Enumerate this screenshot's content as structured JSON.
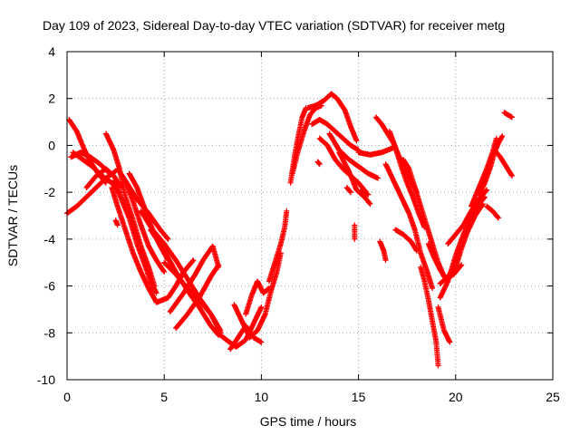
{
  "chart_data": {
    "type": "scatter",
    "title": "Day 109 of 2023, Sidereal Day-to-day VTEC variation (SDTVAR) for receiver metg",
    "xlabel": "GPS time / hours",
    "ylabel": "SDTVAR / TECUs",
    "xlim": [
      0,
      25
    ],
    "ylim": [
      -10,
      4
    ],
    "x_ticks": [
      "0",
      "5",
      "10",
      "15",
      "20",
      "25"
    ],
    "y_ticks": [
      "-10",
      "-8",
      "-6",
      "-4",
      "-2",
      "0",
      "2",
      "4"
    ],
    "grid": true,
    "marker": "+",
    "color": "#ff0000",
    "tracks": [
      [
        [
          0.0,
          -2.9
        ],
        [
          0.5,
          -2.6
        ],
        [
          1.0,
          -2.2
        ],
        [
          1.5,
          -1.8
        ],
        [
          2.0,
          -1.4
        ],
        [
          2.5,
          -1.1
        ]
      ],
      [
        [
          0.3,
          -0.3
        ],
        [
          0.8,
          -0.6
        ],
        [
          1.3,
          -0.9
        ],
        [
          1.8,
          -1.3
        ],
        [
          2.3,
          -1.6
        ],
        [
          2.7,
          -2.0
        ]
      ],
      [
        [
          0.1,
          1.1
        ],
        [
          0.5,
          0.6
        ],
        [
          0.9,
          -0.2
        ],
        [
          1.2,
          -0.7
        ],
        [
          1.6,
          -1.2
        ],
        [
          2.0,
          -1.6
        ]
      ],
      [
        [
          0.2,
          -0.5
        ],
        [
          0.7,
          -0.3
        ],
        [
          1.2,
          -0.5
        ],
        [
          1.7,
          -0.8
        ],
        [
          2.2,
          -1.2
        ]
      ],
      [
        [
          1.0,
          -1.8
        ],
        [
          1.5,
          -1.3
        ],
        [
          2.0,
          -1.0
        ],
        [
          2.4,
          -1.3
        ],
        [
          2.8,
          -1.8
        ]
      ],
      [
        [
          2.0,
          0.5
        ],
        [
          2.4,
          -0.2
        ],
        [
          2.7,
          -1.0
        ],
        [
          3.0,
          -2.2
        ],
        [
          3.4,
          -3.2
        ],
        [
          3.8,
          -4.3
        ],
        [
          4.2,
          -5.2
        ],
        [
          4.5,
          -6.0
        ]
      ],
      [
        [
          2.4,
          -1.5
        ],
        [
          2.8,
          -2.3
        ],
        [
          3.2,
          -3.1
        ],
        [
          3.6,
          -4.2
        ],
        [
          4.0,
          -5.1
        ],
        [
          4.3,
          -5.8
        ],
        [
          4.6,
          -6.3
        ]
      ],
      [
        [
          2.3,
          -1.8
        ],
        [
          2.6,
          -2.6
        ],
        [
          3.0,
          -3.6
        ],
        [
          3.4,
          -4.6
        ],
        [
          3.8,
          -5.4
        ],
        [
          4.2,
          -6.1
        ],
        [
          4.6,
          -6.7
        ]
      ],
      [
        [
          2.6,
          -1.0
        ],
        [
          3.0,
          -1.5
        ],
        [
          3.4,
          -2.4
        ],
        [
          3.8,
          -3.4
        ],
        [
          4.2,
          -4.3
        ],
        [
          4.6,
          -4.9
        ],
        [
          5.0,
          -5.4
        ]
      ],
      [
        [
          3.2,
          -1.2
        ],
        [
          3.6,
          -1.8
        ],
        [
          4.0,
          -2.7
        ],
        [
          4.4,
          -3.6
        ],
        [
          4.8,
          -4.3
        ],
        [
          5.2,
          -4.9
        ]
      ],
      [
        [
          3.0,
          -1.5
        ],
        [
          3.6,
          -2.3
        ],
        [
          4.2,
          -2.9
        ],
        [
          4.8,
          -3.6
        ],
        [
          5.2,
          -4.0
        ]
      ],
      [
        [
          3.8,
          -2.8
        ],
        [
          4.4,
          -3.6
        ],
        [
          5.0,
          -4.2
        ],
        [
          5.6,
          -4.9
        ],
        [
          6.2,
          -5.7
        ],
        [
          6.8,
          -6.5
        ],
        [
          7.4,
          -7.2
        ],
        [
          7.9,
          -8.0
        ]
      ],
      [
        [
          4.3,
          -3.6
        ],
        [
          5.0,
          -4.5
        ],
        [
          5.6,
          -5.4
        ],
        [
          6.2,
          -6.2
        ],
        [
          6.8,
          -6.9
        ],
        [
          7.4,
          -7.7
        ],
        [
          7.8,
          -8.1
        ]
      ],
      [
        [
          5.0,
          -5.0
        ],
        [
          5.6,
          -5.5
        ],
        [
          6.2,
          -6.1
        ],
        [
          6.8,
          -6.6
        ],
        [
          7.4,
          -7.2
        ],
        [
          7.9,
          -7.9
        ]
      ],
      [
        [
          4.6,
          -6.7
        ],
        [
          5.2,
          -6.5
        ],
        [
          5.6,
          -6.0
        ],
        [
          6.0,
          -5.4
        ],
        [
          6.5,
          -4.9
        ]
      ],
      [
        [
          5.3,
          -7.1
        ],
        [
          6.0,
          -6.3
        ],
        [
          6.6,
          -5.5
        ],
        [
          7.0,
          -4.9
        ],
        [
          7.5,
          -4.3
        ],
        [
          7.8,
          -5.2
        ]
      ],
      [
        [
          5.6,
          -7.8
        ],
        [
          6.2,
          -7.2
        ],
        [
          6.8,
          -6.5
        ],
        [
          7.4,
          -5.6
        ],
        [
          7.8,
          -5.1
        ]
      ],
      [
        [
          7.6,
          -7.9
        ],
        [
          8.2,
          -8.3
        ],
        [
          8.7,
          -8.6
        ],
        [
          9.2,
          -8.3
        ],
        [
          9.6,
          -7.6
        ],
        [
          10.0,
          -6.9
        ]
      ],
      [
        [
          8.6,
          -6.8
        ],
        [
          9.0,
          -7.5
        ],
        [
          9.4,
          -8.2
        ],
        [
          9.8,
          -7.9
        ],
        [
          10.2,
          -7.2
        ],
        [
          10.5,
          -6.2
        ],
        [
          10.8,
          -5.4
        ],
        [
          11.0,
          -4.6
        ]
      ],
      [
        [
          9.2,
          -7.2
        ],
        [
          9.5,
          -6.4
        ],
        [
          9.8,
          -5.8
        ],
        [
          10.1,
          -6.3
        ],
        [
          10.4,
          -6.1
        ]
      ],
      [
        [
          8.4,
          -8.7
        ],
        [
          8.8,
          -8.2
        ],
        [
          9.2,
          -7.7
        ],
        [
          9.6,
          -8.2
        ],
        [
          10.0,
          -8.4
        ]
      ],
      [
        [
          10.4,
          -5.8
        ],
        [
          10.7,
          -5.0
        ],
        [
          11.0,
          -4.2
        ],
        [
          11.2,
          -3.5
        ],
        [
          11.3,
          -2.8
        ]
      ],
      [
        [
          11.5,
          -1.6
        ],
        [
          11.7,
          -0.5
        ],
        [
          11.9,
          0.4
        ],
        [
          12.1,
          1.2
        ],
        [
          12.3,
          1.6
        ]
      ],
      [
        [
          11.6,
          -1.2
        ],
        [
          11.9,
          -0.2
        ],
        [
          12.2,
          0.6
        ],
        [
          12.5,
          1.3
        ],
        [
          12.8,
          1.6
        ],
        [
          13.1,
          1.7
        ]
      ],
      [
        [
          12.4,
          1.6
        ],
        [
          12.8,
          1.7
        ],
        [
          13.2,
          1.9
        ],
        [
          13.6,
          2.2
        ],
        [
          13.9,
          2.0
        ],
        [
          14.3,
          1.5
        ],
        [
          14.6,
          0.8
        ],
        [
          14.9,
          0.2
        ]
      ],
      [
        [
          12.6,
          0.9
        ],
        [
          13.0,
          1.1
        ],
        [
          13.4,
          0.9
        ],
        [
          13.8,
          0.6
        ],
        [
          14.2,
          0.3
        ],
        [
          14.6,
          0.0
        ],
        [
          15.0,
          -0.2
        ]
      ],
      [
        [
          13.0,
          0.3
        ],
        [
          13.4,
          0.0
        ],
        [
          13.8,
          -0.6
        ],
        [
          14.2,
          -1.0
        ],
        [
          14.6,
          -1.3
        ],
        [
          15.0,
          -1.6
        ],
        [
          15.4,
          -2.0
        ]
      ],
      [
        [
          13.5,
          0.5
        ],
        [
          14.0,
          -0.2
        ],
        [
          14.5,
          -0.6
        ],
        [
          15.0,
          -0.9
        ],
        [
          15.5,
          -1.2
        ],
        [
          16.0,
          -1.4
        ]
      ],
      [
        [
          14.0,
          -0.3
        ],
        [
          14.5,
          -1.1
        ],
        [
          14.9,
          -1.9
        ],
        [
          15.3,
          -2.2
        ],
        [
          15.6,
          -2.5
        ]
      ],
      [
        [
          15.0,
          -0.3
        ],
        [
          15.6,
          -0.4
        ],
        [
          16.2,
          -0.3
        ],
        [
          16.8,
          -0.1
        ]
      ],
      [
        [
          15.9,
          1.2
        ],
        [
          16.2,
          0.9
        ],
        [
          16.5,
          0.5
        ],
        [
          16.8,
          0.1
        ],
        [
          17.1,
          -0.5
        ],
        [
          17.4,
          -1.0
        ],
        [
          17.7,
          -1.5
        ],
        [
          18.0,
          -2.0
        ]
      ],
      [
        [
          16.6,
          0.6
        ],
        [
          16.9,
          -0.1
        ],
        [
          17.2,
          -0.9
        ],
        [
          17.5,
          -1.6
        ],
        [
          17.8,
          -2.2
        ],
        [
          18.1,
          -2.9
        ],
        [
          18.4,
          -3.5
        ]
      ],
      [
        [
          17.3,
          -0.6
        ],
        [
          17.6,
          -1.0
        ],
        [
          17.9,
          -1.8
        ],
        [
          18.2,
          -2.6
        ],
        [
          18.5,
          -3.4
        ],
        [
          18.8,
          -4.2
        ],
        [
          19.1,
          -5.0
        ],
        [
          19.4,
          -5.6
        ]
      ],
      [
        [
          16.4,
          -0.8
        ],
        [
          16.8,
          -1.5
        ],
        [
          17.2,
          -2.2
        ],
        [
          17.6,
          -2.9
        ],
        [
          17.9,
          -3.6
        ],
        [
          18.2,
          -4.6
        ],
        [
          18.5,
          -5.3
        ],
        [
          18.8,
          -6.1
        ]
      ],
      [
        [
          16.9,
          -3.6
        ],
        [
          17.3,
          -3.8
        ],
        [
          17.7,
          -4.1
        ],
        [
          18.0,
          -4.5
        ]
      ],
      [
        [
          18.2,
          -5.2
        ],
        [
          18.4,
          -5.8
        ],
        [
          18.6,
          -6.6
        ],
        [
          18.8,
          -7.5
        ],
        [
          19.0,
          -8.4
        ],
        [
          19.1,
          -9.4
        ]
      ],
      [
        [
          18.6,
          -4.2
        ],
        [
          18.9,
          -4.8
        ],
        [
          19.2,
          -5.3
        ],
        [
          19.5,
          -5.7
        ],
        [
          19.9,
          -5.5
        ],
        [
          20.3,
          -5.1
        ]
      ],
      [
        [
          19.2,
          -5.9
        ],
        [
          19.6,
          -5.6
        ],
        [
          20.0,
          -5.2
        ],
        [
          20.3,
          -4.4
        ],
        [
          20.6,
          -3.7
        ],
        [
          21.0,
          -3.0
        ],
        [
          21.4,
          -2.5
        ]
      ],
      [
        [
          19.2,
          -6.5
        ],
        [
          19.6,
          -5.8
        ],
        [
          20.0,
          -4.7
        ],
        [
          20.4,
          -3.8
        ],
        [
          20.8,
          -3.1
        ],
        [
          21.2,
          -2.5
        ],
        [
          21.5,
          -2.2
        ]
      ],
      [
        [
          19.6,
          -4.2
        ],
        [
          20.0,
          -3.8
        ],
        [
          20.4,
          -3.4
        ],
        [
          20.8,
          -2.8
        ],
        [
          21.2,
          -2.3
        ],
        [
          21.6,
          -1.9
        ]
      ],
      [
        [
          19.1,
          -6.9
        ],
        [
          19.4,
          -7.9
        ],
        [
          19.7,
          -8.4
        ]
      ],
      [
        [
          20.8,
          -2.6
        ],
        [
          21.2,
          -1.8
        ],
        [
          21.6,
          -1.0
        ],
        [
          21.9,
          -0.3
        ],
        [
          22.1,
          0.3
        ]
      ],
      [
        [
          21.2,
          -2.1
        ],
        [
          21.5,
          -1.6
        ],
        [
          21.8,
          -0.9
        ],
        [
          22.0,
          -0.3
        ],
        [
          22.2,
          0.1
        ],
        [
          22.4,
          0.4
        ]
      ],
      [
        [
          22.0,
          -0.2
        ],
        [
          22.3,
          -0.5
        ],
        [
          22.6,
          -0.9
        ],
        [
          22.9,
          -1.3
        ]
      ],
      [
        [
          21.6,
          -2.6
        ],
        [
          21.9,
          -2.8
        ],
        [
          22.2,
          -3.1
        ]
      ],
      [
        [
          22.5,
          1.4
        ],
        [
          22.7,
          1.3
        ],
        [
          22.9,
          1.2
        ]
      ],
      [
        [
          2.5,
          -3.2
        ],
        [
          2.6,
          -3.4
        ]
      ],
      [
        [
          15.1,
          -1.9
        ],
        [
          15.3,
          -2.0
        ],
        [
          15.5,
          -2.1
        ]
      ],
      [
        [
          14.4,
          -1.8
        ],
        [
          14.6,
          -2.0
        ]
      ],
      [
        [
          12.9,
          -0.7
        ],
        [
          13.0,
          -0.8
        ]
      ],
      [
        [
          14.8,
          -3.4
        ],
        [
          14.8,
          -4.0
        ]
      ],
      [
        [
          16.1,
          -4.1
        ],
        [
          16.3,
          -4.5
        ],
        [
          16.4,
          -4.9
        ]
      ]
    ]
  }
}
